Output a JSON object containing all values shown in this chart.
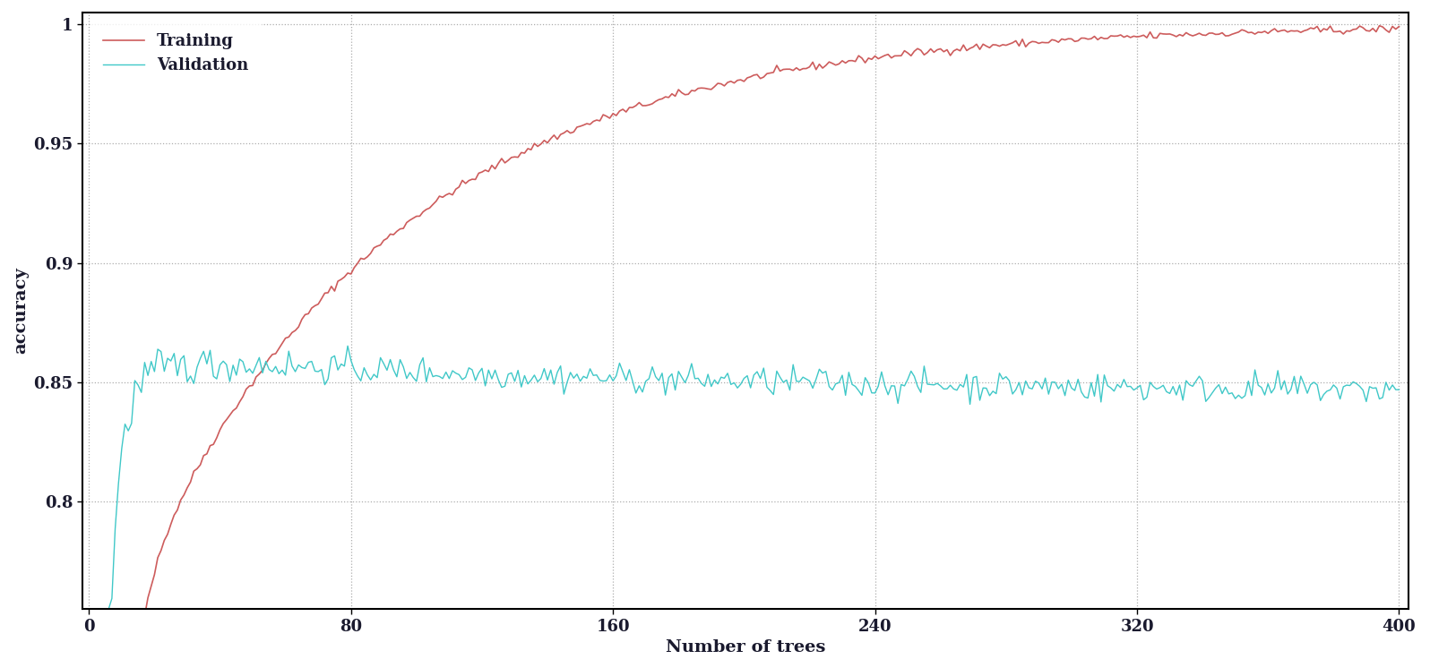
{
  "n_trees": 400,
  "x_ticks": [
    0,
    80,
    160,
    240,
    320,
    400
  ],
  "y_ticks": [
    0.8,
    0.85,
    0.9,
    0.95,
    1.0
  ],
  "ylim": [
    0.755,
    1.005
  ],
  "xlim": [
    -2,
    403
  ],
  "xlabel": "Number of trees",
  "ylabel": "accuracy",
  "training_color": "#cd5c5c",
  "validation_color": "#40c8c8",
  "legend_labels": [
    "Training",
    "Validation"
  ],
  "background_color": "#ffffff",
  "grid_color": "#999999",
  "font_color": "#1a1a2e",
  "seed": 42
}
